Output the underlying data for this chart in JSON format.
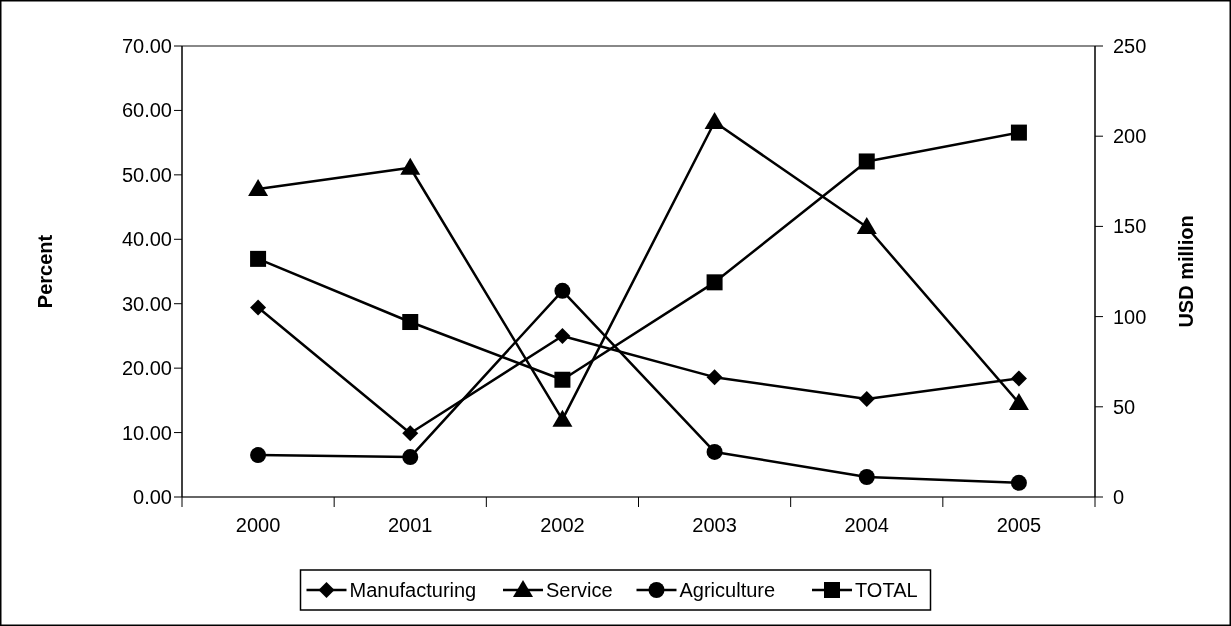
{
  "chart_data": {
    "type": "line",
    "ylabel": "Percent",
    "y2label": "USD million",
    "categories": [
      "2000",
      "2001",
      "2002",
      "2003",
      "2004",
      "2005"
    ],
    "series": [
      {
        "name": "Manufacturing",
        "color": "#000000",
        "marker": "diamond",
        "values": [
          29.4,
          9.9,
          25.0,
          18.6,
          15.2,
          18.4
        ]
      },
      {
        "name": "Service",
        "color": "#000000",
        "marker": "triangle",
        "values": [
          47.8,
          51.1,
          12.0,
          58.2,
          41.9,
          14.6
        ]
      },
      {
        "name": "Agriculture",
        "color": "#000000",
        "marker": "circle",
        "values": [
          6.5,
          6.2,
          32.0,
          7.0,
          3.1,
          2.2
        ]
      },
      {
        "name": "TOTAL",
        "color": "#000000",
        "marker": "square",
        "axis": "y2",
        "values": [
          132,
          97,
          65,
          119,
          186,
          202
        ]
      }
    ],
    "ylim": [
      0,
      70
    ],
    "yticks": [
      {
        "value": 0,
        "label": "0.00"
      },
      {
        "value": 10,
        "label": "10.00"
      },
      {
        "value": 20,
        "label": "20.00"
      },
      {
        "value": 30,
        "label": "30.00"
      },
      {
        "value": 40,
        "label": "40.00"
      },
      {
        "value": 50,
        "label": "50.00"
      },
      {
        "value": 60,
        "label": "60.00"
      },
      {
        "value": 70,
        "label": "70.00"
      }
    ],
    "y2lim": [
      0,
      250
    ],
    "y2ticks": [
      0,
      50,
      100,
      150,
      200,
      250
    ],
    "grid": false,
    "legend": "bottom"
  }
}
